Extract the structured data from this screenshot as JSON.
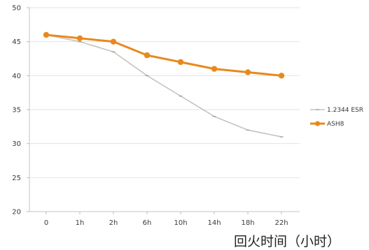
{
  "chart_data": {
    "type": "line",
    "title": "",
    "xlabel": "回火时间（小时）",
    "ylabel": "",
    "categories": [
      "0",
      "1h",
      "2h",
      "6h",
      "10h",
      "14h",
      "18h",
      "22h"
    ],
    "yticks": [
      "20",
      "25",
      "30",
      "35",
      "40",
      "45",
      "50"
    ],
    "ylim": [
      20,
      50
    ],
    "grid": "horizontal",
    "legend_position": "right",
    "series": [
      {
        "name": "1.2344 ESR",
        "color": "#c8c3bd",
        "values": [
          46,
          45,
          43.5,
          40,
          37,
          34,
          32,
          31
        ]
      },
      {
        "name": "ASH8",
        "color": "#e8891e",
        "values": [
          46,
          45.5,
          45,
          43,
          42,
          41,
          40.5,
          40
        ]
      }
    ]
  }
}
